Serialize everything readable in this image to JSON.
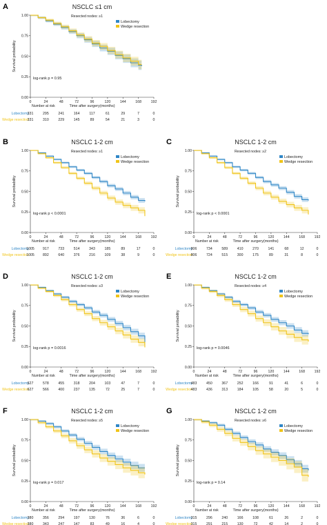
{
  "colors": {
    "lobectomy": "#2f86c6",
    "wedge": "#f0c419",
    "axis": "#333333",
    "text": "#222222"
  },
  "chart_data": [
    {
      "type": "line",
      "panel_label": "A",
      "title": "NSCLC ≤1 cm",
      "resected_nodes": "Resected nodes: ≥1",
      "ylabel": "Survival probability",
      "xlabel": "Time after surgery(months)",
      "xlim": [
        0,
        192
      ],
      "ylim": [
        0,
        1
      ],
      "xticks": [
        0,
        24,
        48,
        72,
        96,
        120,
        144,
        168,
        192
      ],
      "yticks": [
        "0.00",
        "0.25",
        "0.50",
        "0.75",
        "1.00"
      ],
      "pvalue": "log-rank p = 0.95",
      "legend": "top-right",
      "risk_title": "Number at risk",
      "series": [
        {
          "name": "Lobectomy",
          "x": [
            0,
            12,
            24,
            36,
            48,
            60,
            72,
            84,
            96,
            108,
            120,
            132,
            144,
            156,
            168,
            173
          ],
          "y": [
            1.0,
            0.97,
            0.93,
            0.89,
            0.85,
            0.8,
            0.75,
            0.7,
            0.65,
            0.6,
            0.56,
            0.51,
            0.47,
            0.42,
            0.39,
            0.38
          ],
          "ci": 0.06
        },
        {
          "name": "Wedge resection",
          "x": [
            0,
            12,
            24,
            36,
            48,
            60,
            72,
            84,
            96,
            108,
            120,
            132,
            144,
            156,
            168,
            173
          ],
          "y": [
            1.0,
            0.97,
            0.94,
            0.9,
            0.86,
            0.81,
            0.76,
            0.71,
            0.66,
            0.62,
            0.57,
            0.52,
            0.48,
            0.44,
            0.4,
            0.4
          ],
          "ci": 0.06
        }
      ],
      "risk": [
        {
          "label": "Lobectomy",
          "values": [
            "331",
            "295",
            "241",
            "164",
            "117",
            "61",
            "29",
            "7",
            "0"
          ]
        },
        {
          "label": "Wedge resection",
          "values": [
            "331",
            "310",
            "229",
            "145",
            "89",
            "54",
            "21",
            "3",
            "0"
          ]
        }
      ]
    },
    {
      "type": "line",
      "panel_label": "B",
      "title": "NSCLC 1-2 cm",
      "resected_nodes": "Resected nodes: ≥1",
      "ylabel": "Survival probability",
      "xlabel": "Time after surgery(months)",
      "xlim": [
        0,
        192
      ],
      "ylim": [
        0,
        1
      ],
      "xticks": [
        0,
        24,
        48,
        72,
        96,
        120,
        144,
        168,
        192
      ],
      "yticks": [
        "0.00",
        "0.25",
        "0.50",
        "0.75",
        "1.00"
      ],
      "pvalue": "log-rank p < 0.0001",
      "legend": "top-right",
      "risk_title": "Number at risk",
      "series": [
        {
          "name": "Lobectomy",
          "x": [
            0,
            12,
            24,
            36,
            48,
            60,
            72,
            84,
            96,
            108,
            120,
            132,
            144,
            156,
            168,
            178
          ],
          "y": [
            1.0,
            0.97,
            0.93,
            0.89,
            0.85,
            0.8,
            0.76,
            0.72,
            0.67,
            0.62,
            0.57,
            0.53,
            0.48,
            0.43,
            0.39,
            0.38
          ],
          "ci": 0.03
        },
        {
          "name": "Wedge resection",
          "x": [
            0,
            12,
            24,
            36,
            48,
            60,
            72,
            84,
            96,
            108,
            120,
            132,
            144,
            156,
            168,
            178
          ],
          "y": [
            1.0,
            0.96,
            0.91,
            0.85,
            0.79,
            0.72,
            0.66,
            0.6,
            0.54,
            0.48,
            0.42,
            0.37,
            0.33,
            0.3,
            0.27,
            0.2
          ],
          "ci": 0.04
        }
      ],
      "risk": [
        {
          "label": "Lobectomy",
          "values": [
            "1005",
            "917",
            "733",
            "514",
            "343",
            "185",
            "89",
            "17",
            "0"
          ]
        },
        {
          "label": "Wedge resection",
          "values": [
            "1005",
            "892",
            "640",
            "376",
            "216",
            "109",
            "38",
            "9",
            "0"
          ]
        }
      ]
    },
    {
      "type": "line",
      "panel_label": "C",
      "title": "NSCLC 1-2 cm",
      "resected_nodes": "Resected nodes: ≥2",
      "ylabel": "Survival probability",
      "xlabel": "Time after surgery(months)",
      "xlim": [
        0,
        192
      ],
      "ylim": [
        0,
        1
      ],
      "xticks": [
        0,
        24,
        48,
        72,
        96,
        120,
        144,
        168,
        192
      ],
      "yticks": [
        "0.00",
        "0.25",
        "0.50",
        "0.75",
        "1.00"
      ],
      "pvalue": "log-rank p < 0.0001",
      "legend": "top-right",
      "risk_title": "Number at risk",
      "series": [
        {
          "name": "Lobectomy",
          "x": [
            0,
            12,
            24,
            36,
            48,
            60,
            72,
            84,
            96,
            108,
            120,
            132,
            144,
            156,
            168,
            178
          ],
          "y": [
            1.0,
            0.97,
            0.93,
            0.89,
            0.85,
            0.8,
            0.76,
            0.72,
            0.67,
            0.62,
            0.58,
            0.54,
            0.49,
            0.44,
            0.4,
            0.39
          ],
          "ci": 0.03
        },
        {
          "name": "Wedge resection",
          "x": [
            0,
            12,
            24,
            36,
            48,
            60,
            72,
            84,
            96,
            108,
            120,
            132,
            144,
            156,
            168,
            178
          ],
          "y": [
            1.0,
            0.96,
            0.91,
            0.85,
            0.79,
            0.72,
            0.66,
            0.6,
            0.54,
            0.48,
            0.43,
            0.38,
            0.34,
            0.3,
            0.27,
            0.22
          ],
          "ci": 0.04
        }
      ],
      "risk": [
        {
          "label": "Lobectomy",
          "values": [
            "806",
            "734",
            "589",
            "410",
            "270",
            "141",
            "68",
            "12",
            "0"
          ]
        },
        {
          "label": "Wedge resection",
          "values": [
            "806",
            "724",
            "515",
            "300",
            "175",
            "89",
            "31",
            "8",
            "0"
          ]
        }
      ]
    },
    {
      "type": "line",
      "panel_label": "D",
      "title": "NSCLC 1-2 cm",
      "resected_nodes": "Resected nodes: ≥3",
      "ylabel": "Survival probability",
      "xlabel": "Time after surgery(months)",
      "xlim": [
        0,
        192
      ],
      "ylim": [
        0,
        1
      ],
      "xticks": [
        0,
        24,
        48,
        72,
        96,
        120,
        144,
        168,
        192
      ],
      "yticks": [
        "0.00",
        "0.25",
        "0.50",
        "0.75",
        "1.00"
      ],
      "pvalue": "log-rank p = 0.0016",
      "legend": "top-right",
      "risk_title": "Number at risk",
      "series": [
        {
          "name": "Lobectomy",
          "x": [
            0,
            12,
            24,
            36,
            48,
            60,
            72,
            84,
            96,
            108,
            120,
            132,
            144,
            156,
            168,
            178
          ],
          "y": [
            1.0,
            0.97,
            0.93,
            0.89,
            0.85,
            0.8,
            0.76,
            0.72,
            0.67,
            0.63,
            0.58,
            0.53,
            0.48,
            0.43,
            0.38,
            0.27
          ],
          "ci": 0.04
        },
        {
          "name": "Wedge resection",
          "x": [
            0,
            12,
            24,
            36,
            48,
            60,
            72,
            84,
            96,
            108,
            120,
            132,
            144,
            156,
            168,
            178
          ],
          "y": [
            1.0,
            0.96,
            0.92,
            0.87,
            0.82,
            0.76,
            0.7,
            0.65,
            0.59,
            0.54,
            0.49,
            0.44,
            0.39,
            0.34,
            0.3,
            0.24
          ],
          "ci": 0.05
        }
      ],
      "risk": [
        {
          "label": "Lobectomy",
          "values": [
            "627",
            "578",
            "455",
            "318",
            "204",
            "103",
            "47",
            "7",
            "0"
          ]
        },
        {
          "label": "Wedge resection",
          "values": [
            "627",
            "566",
            "400",
            "237",
            "135",
            "72",
            "25",
            "7",
            "0"
          ]
        }
      ]
    },
    {
      "type": "line",
      "panel_label": "E",
      "title": "NSCLC 1-2 cm",
      "resected_nodes": "Resected nodes: ≥4",
      "ylabel": "Survival probability",
      "xlabel": "Time after surgery(months)",
      "xlim": [
        0,
        192
      ],
      "ylim": [
        0,
        1
      ],
      "xticks": [
        0,
        24,
        48,
        72,
        96,
        120,
        144,
        168,
        192
      ],
      "yticks": [
        "0.00",
        "0.25",
        "0.50",
        "0.75",
        "1.00"
      ],
      "pvalue": "log-rank p = 0.0046",
      "legend": "top-right",
      "risk_title": "Number at risk",
      "series": [
        {
          "name": "Lobectomy",
          "x": [
            0,
            12,
            24,
            36,
            48,
            60,
            72,
            84,
            96,
            108,
            120,
            132,
            144,
            156,
            168,
            178
          ],
          "y": [
            1.0,
            0.97,
            0.93,
            0.89,
            0.85,
            0.8,
            0.76,
            0.72,
            0.67,
            0.63,
            0.58,
            0.54,
            0.5,
            0.45,
            0.41,
            0.4
          ],
          "ci": 0.04
        },
        {
          "name": "Wedge resection",
          "x": [
            0,
            12,
            24,
            36,
            48,
            60,
            72,
            84,
            96,
            108,
            120,
            132,
            144,
            156,
            168,
            178
          ],
          "y": [
            1.0,
            0.96,
            0.92,
            0.87,
            0.82,
            0.76,
            0.7,
            0.65,
            0.59,
            0.54,
            0.49,
            0.44,
            0.4,
            0.36,
            0.33,
            0.31
          ],
          "ci": 0.06
        }
      ],
      "risk": [
        {
          "label": "Lobectomy",
          "values": [
            "483",
            "450",
            "367",
            "252",
            "166",
            "91",
            "41",
            "6",
            "0"
          ]
        },
        {
          "label": "Wedge resection",
          "values": [
            "483",
            "436",
            "313",
            "184",
            "105",
            "58",
            "20",
            "5",
            "0"
          ]
        }
      ]
    },
    {
      "type": "line",
      "panel_label": "F",
      "title": "NSCLC 1-2 cm",
      "resected_nodes": "Resected nodes: ≥5",
      "ylabel": "Survival probability",
      "xlabel": "Time after surgery(months)",
      "xlim": [
        0,
        192
      ],
      "ylim": [
        0,
        1
      ],
      "xticks": [
        0,
        24,
        48,
        72,
        96,
        120,
        144,
        168,
        192
      ],
      "yticks": [
        "0.00",
        "0.25",
        "0.50",
        "0.75",
        "1.00"
      ],
      "pvalue": "log-rank p = 0.017",
      "legend": "top-right",
      "risk_title": "Number at risk",
      "series": [
        {
          "name": "Lobectomy",
          "x": [
            0,
            12,
            24,
            36,
            48,
            60,
            72,
            84,
            96,
            108,
            120,
            132,
            144,
            156,
            168,
            178
          ],
          "y": [
            1.0,
            0.98,
            0.95,
            0.91,
            0.86,
            0.81,
            0.76,
            0.71,
            0.66,
            0.61,
            0.56,
            0.52,
            0.48,
            0.44,
            0.41,
            0.41
          ],
          "ci": 0.05
        },
        {
          "name": "Wedge resection",
          "x": [
            0,
            12,
            24,
            36,
            48,
            60,
            72,
            84,
            96,
            108,
            120,
            132,
            144,
            156,
            168,
            178
          ],
          "y": [
            1.0,
            0.96,
            0.91,
            0.86,
            0.8,
            0.74,
            0.68,
            0.63,
            0.58,
            0.53,
            0.49,
            0.45,
            0.41,
            0.38,
            0.35,
            0.33
          ],
          "ci": 0.07
        }
      ],
      "risk": [
        {
          "label": "Lobectomy",
          "values": [
            "380",
            "356",
            "294",
            "197",
            "130",
            "76",
            "36",
            "6",
            "0"
          ]
        },
        {
          "label": "Wedge resection",
          "values": [
            "380",
            "343",
            "247",
            "147",
            "83",
            "49",
            "16",
            "4",
            "0"
          ]
        }
      ]
    },
    {
      "type": "line",
      "panel_label": "G",
      "title": "NSCLC 1-2 cm",
      "resected_nodes": "Resected nodes: ≥6",
      "ylabel": "Survival probability",
      "xlabel": "Time after surgery(months)",
      "xlim": [
        0,
        192
      ],
      "ylim": [
        0,
        1
      ],
      "xticks": [
        0,
        24,
        48,
        72,
        96,
        120,
        144,
        168,
        192
      ],
      "yticks": [
        "0.00",
        "0.25",
        "0.50",
        "0.75",
        "1.00"
      ],
      "pvalue": "log-rank p = 0.14",
      "legend": "top-right",
      "risk_title": "Number at risk",
      "series": [
        {
          "name": "Lobectomy",
          "x": [
            0,
            12,
            24,
            36,
            48,
            60,
            72,
            84,
            96,
            108,
            120,
            132,
            144,
            156,
            168,
            178
          ],
          "y": [
            1.0,
            0.98,
            0.96,
            0.93,
            0.88,
            0.83,
            0.78,
            0.73,
            0.69,
            0.64,
            0.6,
            0.56,
            0.51,
            0.46,
            0.4,
            0.38
          ],
          "ci": 0.05
        },
        {
          "name": "Wedge resection",
          "x": [
            0,
            12,
            24,
            36,
            48,
            60,
            72,
            84,
            96,
            108,
            120,
            132,
            144,
            156,
            168,
            178
          ],
          "y": [
            1.0,
            0.97,
            0.93,
            0.88,
            0.83,
            0.77,
            0.72,
            0.67,
            0.62,
            0.58,
            0.54,
            0.5,
            0.46,
            0.42,
            0.32,
            0.3
          ],
          "ci": 0.08
        }
      ],
      "risk": [
        {
          "label": "Lobectomy",
          "values": [
            "315",
            "296",
            "240",
            "166",
            "108",
            "61",
            "26",
            "2",
            "0"
          ]
        },
        {
          "label": "Wedge resection",
          "values": [
            "315",
            "291",
            "215",
            "130",
            "72",
            "42",
            "14",
            "2",
            "0"
          ]
        }
      ]
    }
  ]
}
